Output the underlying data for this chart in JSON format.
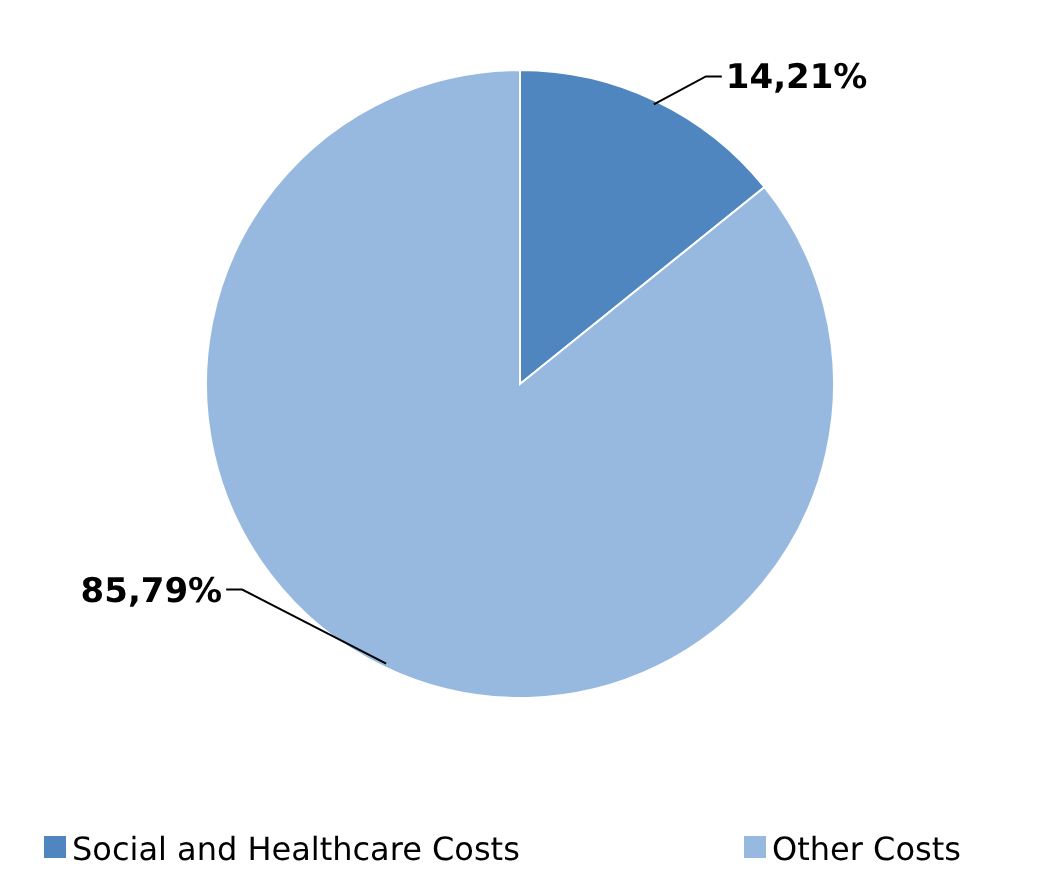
{
  "chart_data": {
    "type": "pie",
    "categories": [
      "Social and Healthcare Costs",
      "Other Costs"
    ],
    "values": [
      14.21,
      85.79
    ],
    "colors": [
      "#4f86c0",
      "#97b9e0"
    ],
    "value_labels": [
      "14,21%",
      "85,79%"
    ],
    "legend": "bottom"
  }
}
